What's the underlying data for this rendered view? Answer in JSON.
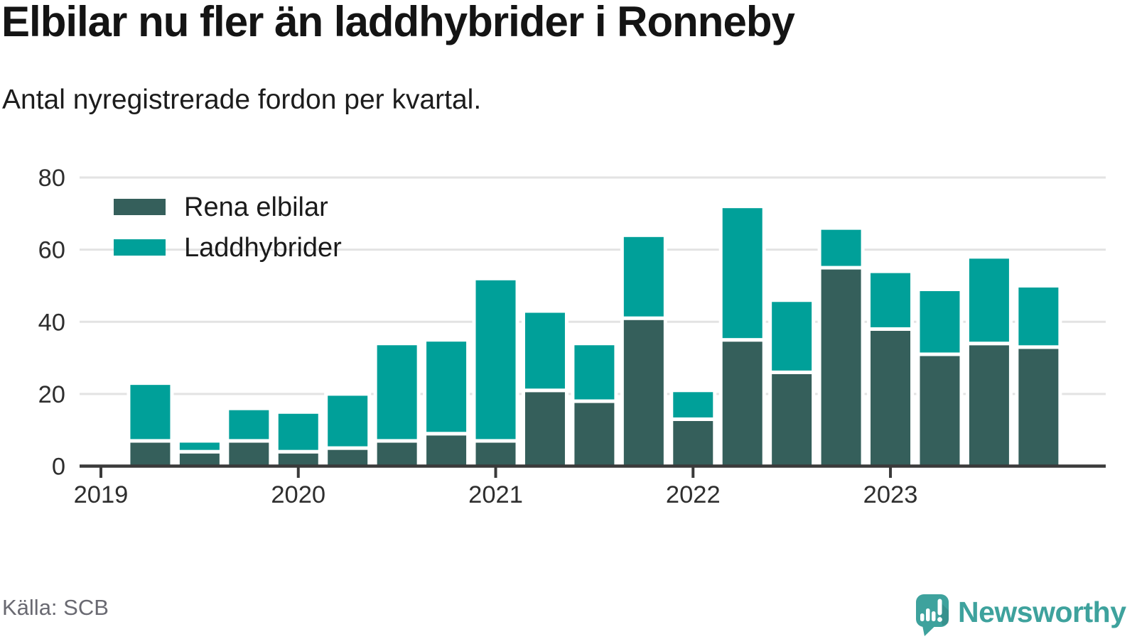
{
  "header": {
    "title": "Elbilar nu fler än laddhybrider i Ronneby",
    "subtitle": "Antal nyregistrerade fordon per kvartal."
  },
  "legend": {
    "items": [
      {
        "label": "Rena elbilar",
        "color": "#355F5B"
      },
      {
        "label": "Laddhybrider",
        "color": "#00A099"
      }
    ]
  },
  "footer": {
    "source": "Källa: SCB",
    "brand": "Newsworthy"
  },
  "colors": {
    "series_elbilar": "#355F5B",
    "series_laddhybrider": "#00A099",
    "grid": "#E3E3E3",
    "axis": "#3A3A3A",
    "tick_label": "#2E2E2E",
    "brand_teal": "#3EA29D"
  },
  "chart_data": {
    "type": "bar",
    "stacked": true,
    "title": "Elbilar nu fler än laddhybrider i Ronneby",
    "subtitle": "Antal nyregistrerade fordon per kvartal.",
    "categories": [
      "2019 Q2",
      "2019 Q3",
      "2019 Q4",
      "2020 Q1",
      "2020 Q2",
      "2020 Q3",
      "2020 Q4",
      "2021 Q1",
      "2021 Q2",
      "2021 Q3",
      "2021 Q4",
      "2022 Q1",
      "2022 Q2",
      "2022 Q3",
      "2022 Q4",
      "2023 Q1",
      "2023 Q2",
      "2023 Q3",
      "2023 Q4"
    ],
    "series": [
      {
        "name": "Rena elbilar",
        "color": "#355F5B",
        "values": [
          7,
          4,
          7,
          4,
          5,
          7,
          9,
          7,
          21,
          18,
          41,
          13,
          35,
          26,
          55,
          38,
          31,
          34,
          33
        ]
      },
      {
        "name": "Laddhybrider",
        "color": "#00A099",
        "values": [
          16,
          3,
          9,
          11,
          15,
          27,
          26,
          45,
          22,
          16,
          23,
          8,
          37,
          20,
          11,
          16,
          18,
          24,
          17
        ]
      }
    ],
    "stack_totals": [
      23,
      7,
      16,
      15,
      20,
      34,
      35,
      52,
      43,
      34,
      64,
      21,
      72,
      46,
      66,
      54,
      49,
      58,
      50
    ],
    "x_tick_labels": [
      "2019",
      "2020",
      "2021",
      "2022",
      "2023"
    ],
    "y_ticks": [
      0,
      20,
      40,
      60,
      80
    ],
    "ylim": [
      0,
      80
    ],
    "grid": true,
    "legend_position": "top-left"
  }
}
